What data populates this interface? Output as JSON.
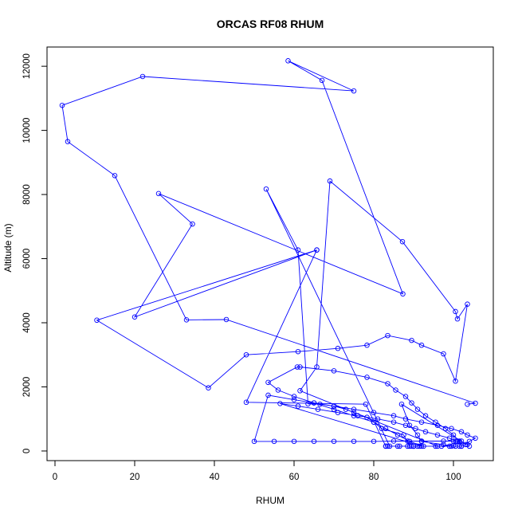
{
  "chart_data": {
    "type": "line",
    "title": "ORCAS RF08 RHUM",
    "xlabel": "RHUM",
    "ylabel": "Altitude (m)",
    "xlim": [
      -2,
      110
    ],
    "ylim": [
      -300,
      12600
    ],
    "x_ticks": [
      0,
      20,
      40,
      60,
      80,
      100
    ],
    "y_ticks": [
      0,
      2000,
      4000,
      6000,
      8000,
      10000,
      12000
    ],
    "x_tick_labels": [
      "0",
      "20",
      "40",
      "60",
      "80",
      "100"
    ],
    "y_tick_labels": [
      "0",
      "2000",
      "4000",
      "6000",
      "8000",
      "10000",
      "12000"
    ],
    "grid": false,
    "marker": "open-circle",
    "colors": {
      "series": "#0000ff",
      "axis": "#000000"
    },
    "series": [
      {
        "x": [
          65.7,
          48,
          78,
          83,
          90,
          95.5,
          100,
          100.5,
          101.5,
          102,
          101,
          100,
          97.5,
          92,
          88.5,
          85,
          80,
          75,
          70,
          65,
          60,
          55,
          50,
          53.5,
          60,
          65,
          70,
          75,
          80,
          85,
          88,
          92,
          96,
          99.5,
          102,
          103.5,
          105.5,
          104,
          103,
          102,
          90,
          86,
          83,
          84,
          53,
          61,
          63.5,
          66.5,
          70,
          73,
          75,
          78.3,
          80,
          82,
          87.5,
          89,
          89.5,
          101.5,
          91.5,
          90,
          86.5,
          83.5,
          88.5,
          91,
          92,
          56.5,
          61,
          66,
          71,
          76,
          81,
          85,
          88,
          90.5,
          93,
          96,
          99,
          101,
          103.5,
          104,
          87,
          89,
          91,
          92,
          97.5,
          100.5,
          102,
          101.5,
          100,
          98,
          95.5,
          93,
          91,
          89.5,
          88,
          85.5,
          83.5,
          78.3,
          70,
          61.5,
          60.8,
          53.5,
          56,
          60,
          65,
          70,
          75,
          80,
          83,
          86,
          89,
          92.5,
          97,
          99,
          99.5,
          96,
          61.5,
          65.7,
          69,
          87.2,
          100.5,
          101,
          103.5,
          100.5,
          97.5,
          92,
          89.5,
          83.5,
          78.3,
          71,
          61,
          48,
          38.5,
          10.5,
          65.7,
          20,
          34.5,
          26,
          87.3,
          67,
          58.5,
          75,
          22,
          1.8,
          3.2,
          15,
          33,
          43,
          105.5,
          103.5
        ],
        "y": [
          6270,
          1520,
          1460,
          150,
          150,
          150,
          170,
          310,
          310,
          310,
          310,
          310,
          310,
          310,
          310,
          310,
          300,
          300,
          300,
          300,
          300,
          300,
          300,
          1740,
          1600,
          1500,
          1400,
          1300,
          1200,
          1100,
          1000,
          900,
          800,
          700,
          600,
          500,
          400,
          300,
          200,
          150,
          150,
          150,
          150,
          150,
          8170,
          6270,
          1470,
          1460,
          1400,
          1300,
          1200,
          1050,
          900,
          700,
          500,
          150,
          150,
          150,
          150,
          150,
          150,
          150,
          150,
          150,
          150,
          1480,
          1400,
          1300,
          1200,
          1100,
          1000,
          900,
          800,
          700,
          600,
          500,
          400,
          300,
          200,
          150,
          1460,
          800,
          500,
          300,
          200,
          150,
          150,
          300,
          500,
          700,
          900,
          1100,
          1300,
          1500,
          1700,
          1900,
          2100,
          2300,
          2500,
          2620,
          2620,
          2140,
          1900,
          1700,
          1500,
          1300,
          1100,
          900,
          700,
          500,
          300,
          150,
          150,
          150,
          150,
          150,
          1880,
          2620,
          8420,
          6530,
          4350,
          4120,
          4580,
          2180,
          3030,
          3300,
          3450,
          3600,
          3300,
          3200,
          3100,
          3000,
          1970,
          4080,
          6270,
          4180,
          7080,
          8030,
          4900,
          11560,
          12170,
          11230,
          11680,
          10780,
          9650,
          8590,
          4090,
          4100,
          1490,
          1460
        ]
      }
    ]
  }
}
